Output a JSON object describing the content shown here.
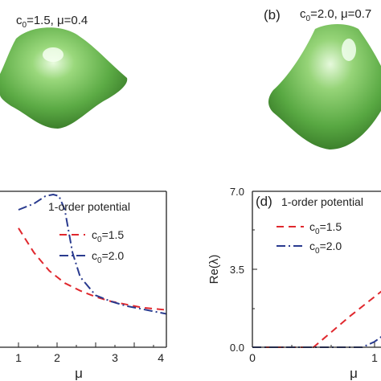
{
  "figure": {
    "panel_a": {
      "annotation": {
        "c": "c",
        "sub": "0",
        "rest": "=1.5, μ=0.4"
      }
    },
    "panel_b": {
      "label": "(b)",
      "annotation": {
        "c": "c",
        "sub": "0",
        "rest": "=2.0, μ=0.7"
      }
    },
    "panel_c": {
      "legend_title": "1-order potential",
      "xlabel": "μ",
      "xticks": [
        "1",
        "2",
        "3",
        "4"
      ],
      "legend": [
        {
          "c": "c",
          "sub": "0",
          "rest": "=1.5",
          "color": "#e0282e",
          "dash": "9,6"
        },
        {
          "c": "c",
          "sub": "0",
          "rest": "=2.0",
          "color": "#2a3b8f",
          "dash": "11,4,2,4"
        }
      ]
    },
    "panel_d": {
      "label": "(d)",
      "legend_title": "1-order potential",
      "ylabel": "Re(λ)",
      "xlabel": "μ",
      "yticks": [
        "7.0",
        "3.5",
        "0.0"
      ],
      "xticks": [
        "0",
        "1"
      ],
      "legend": [
        {
          "c": "c",
          "sub": "0",
          "rest": "=1.5",
          "color": "#e0282e",
          "dash": "9,6"
        },
        {
          "c": "c",
          "sub": "0",
          "rest": "=2.0",
          "color": "#2a3b8f",
          "dash": "11,4,2,4"
        }
      ]
    },
    "colors": {
      "shape_green": "#5fb04a",
      "axis": "#222222"
    }
  },
  "chart_data": [
    {
      "type": "line",
      "panel": "c",
      "title": "1-order potential",
      "xlabel": "μ",
      "ylabel": "",
      "xlim": [
        0,
        4
      ],
      "legend_placement": "top-right",
      "series": [
        {
          "name": "c0=1.5",
          "x": [
            0.0,
            0.4,
            0.8,
            1.2,
            1.6,
            2.0,
            2.4,
            2.8,
            3.2,
            3.6,
            4.0
          ],
          "y": [
            0.78,
            0.62,
            0.5,
            0.42,
            0.37,
            0.33,
            0.3,
            0.28,
            0.26,
            0.25,
            0.24
          ]
        },
        {
          "name": "c0=2.0",
          "x": [
            0.0,
            0.4,
            0.7,
            0.9,
            1.05,
            1.2,
            1.4,
            1.6,
            2.0,
            2.4,
            2.8,
            3.2,
            3.6,
            4.0
          ],
          "y": [
            0.9,
            0.94,
            0.99,
            1.0,
            0.99,
            0.9,
            0.62,
            0.46,
            0.34,
            0.3,
            0.27,
            0.25,
            0.23,
            0.21
          ]
        }
      ]
    },
    {
      "type": "line",
      "panel": "d",
      "title": "1-order potential",
      "xlabel": "μ",
      "ylabel": "Re(λ)",
      "ylim": [
        0,
        7.0
      ],
      "legend_placement": "top-right",
      "series": [
        {
          "name": "c0=1.5",
          "x": [
            0.0,
            0.4,
            0.5,
            0.8,
            1.1,
            1.2
          ],
          "y": [
            0.0,
            0.0,
            0.0,
            1.4,
            2.7,
            3.1
          ]
        },
        {
          "name": "c0=2.0",
          "x": [
            0.0,
            0.8,
            0.9,
            1.0,
            1.1,
            1.2
          ],
          "y": [
            0.0,
            0.0,
            0.0,
            0.25,
            0.65,
            1.2
          ]
        }
      ]
    }
  ]
}
